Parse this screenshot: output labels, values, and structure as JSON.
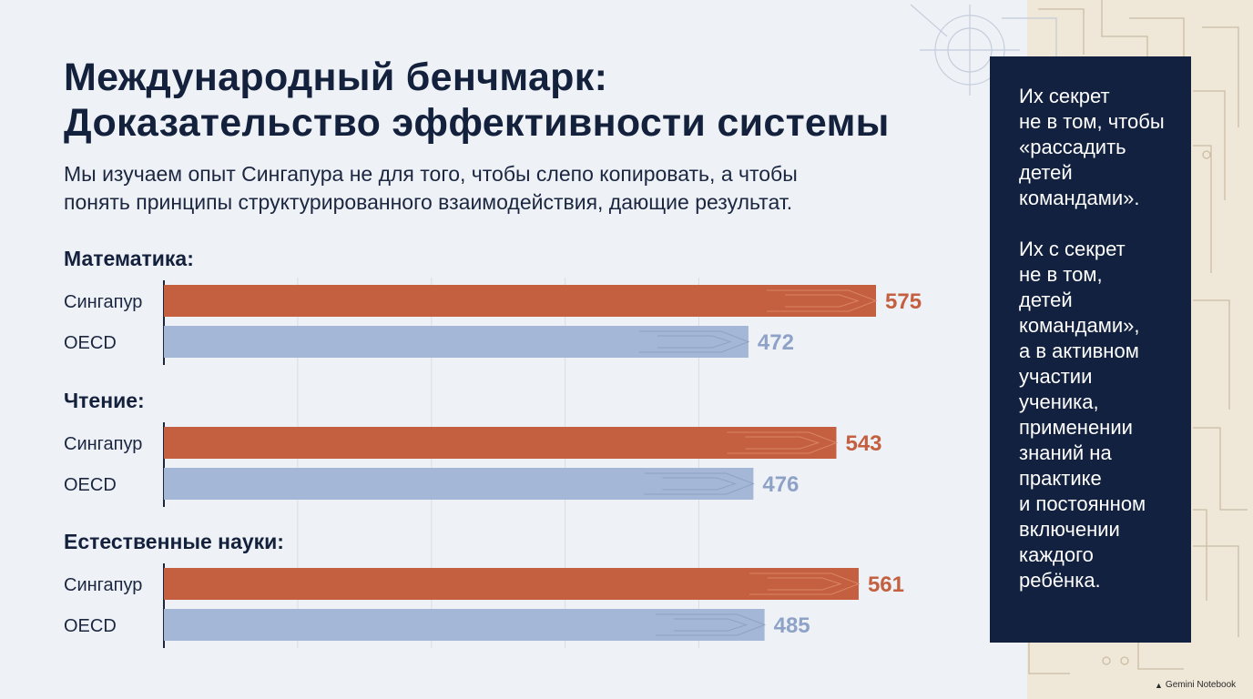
{
  "title_line1": "Международный бенчмарк:",
  "title_line2": "Доказательство эффективности системы",
  "subtitle_line1": "Мы изучаем опыт Сингапура не для того, чтобы слепо копировать, а чтобы",
  "subtitle_line2": "понять принципы структурированного взаимодействия, дающие результат.",
  "quote": {
    "paragraph1": "Их секрет\nне в том, чтобы\n«рассадить\nдетей\nкомандами».",
    "paragraph2": "Их с секрет\nне в том,\nдетей\nкомандами»,\nа в активном\nучастии\nученика,\nприменении\nзнаний на\nпрактике\nи постоянном\nвключении\nкаждого\nребёнка."
  },
  "brand": {
    "label": "Gemini Notebook",
    "icon": "gemini-notebook-icon"
  },
  "colors": {
    "singapore": "#c4603f",
    "oecd": "#a5b7d7",
    "singapore_text": "#c4603f",
    "oecd_text": "#8ea2c8"
  },
  "chart_data": {
    "type": "bar",
    "orientation": "horizontal",
    "groups": [
      {
        "label": "Математика:",
        "bars": [
          {
            "name": "Сингапур",
            "value": 575
          },
          {
            "name": "OECD",
            "value": 472
          }
        ]
      },
      {
        "label": "Чтение:",
        "bars": [
          {
            "name": "Сингапур",
            "value": 543
          },
          {
            "name": "OECD",
            "value": 476
          }
        ]
      },
      {
        "label": "Естественные науки:",
        "bars": [
          {
            "name": "Сингапур",
            "value": 561
          },
          {
            "name": "OECD",
            "value": 485
          }
        ]
      }
    ],
    "xlim": [
      0,
      600
    ],
    "grid": true,
    "legend": "none"
  }
}
